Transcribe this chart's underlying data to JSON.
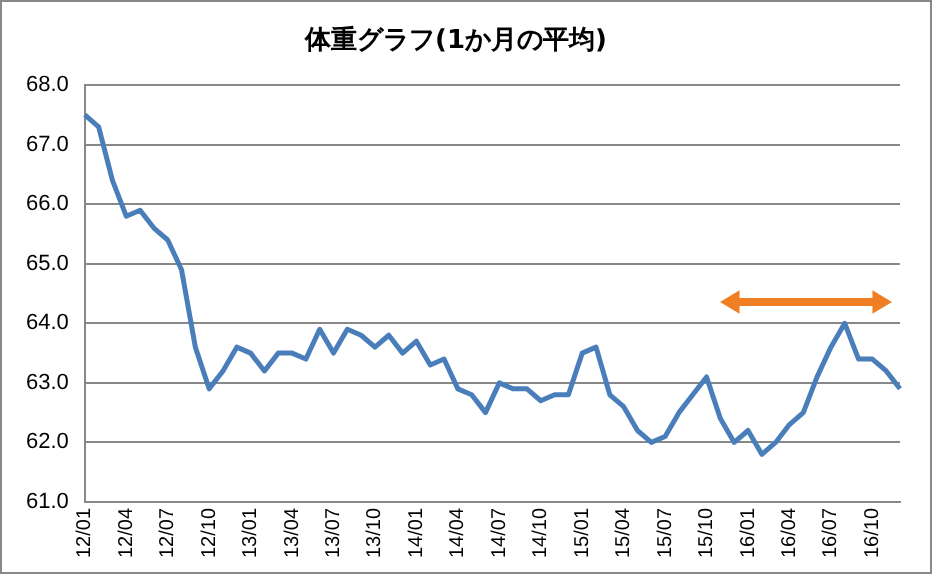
{
  "chart_data": {
    "type": "line",
    "title": "体重グラフ(1か月の平均)",
    "categories": [
      "12/01",
      null,
      null,
      "12/04",
      null,
      null,
      "12/07",
      null,
      null,
      "12/10",
      null,
      null,
      "13/01",
      null,
      null,
      "13/04",
      null,
      null,
      "13/07",
      null,
      null,
      "13/10",
      null,
      null,
      "14/01",
      null,
      null,
      "14/04",
      null,
      null,
      "14/07",
      null,
      null,
      "14/10",
      null,
      null,
      "15/01",
      null,
      null,
      "15/04",
      null,
      null,
      "15/07",
      null,
      null,
      "15/10",
      null,
      null,
      "16/01",
      null,
      null,
      "16/04",
      null,
      null,
      "16/07",
      null,
      null,
      "16/10",
      null,
      null
    ],
    "series": [
      {
        "color": "#4a7ebb",
        "values": [
          67.5,
          67.3,
          66.4,
          65.8,
          65.9,
          65.6,
          65.4,
          64.9,
          63.6,
          62.9,
          63.2,
          63.6,
          63.5,
          63.2,
          63.5,
          63.5,
          63.4,
          63.9,
          63.5,
          63.9,
          63.8,
          63.6,
          63.8,
          63.5,
          63.7,
          63.3,
          63.4,
          62.9,
          62.8,
          62.5,
          63.0,
          62.9,
          62.9,
          62.7,
          62.8,
          62.8,
          63.5,
          63.6,
          62.8,
          62.6,
          62.2,
          62.0,
          62.1,
          62.5,
          62.8,
          63.1,
          62.4,
          62.0,
          62.2,
          61.8,
          62.0,
          62.3,
          62.5,
          63.1,
          63.6,
          64.0,
          63.4,
          63.4,
          63.2,
          62.9
        ]
      }
    ],
    "ylim": [
      61,
      68
    ],
    "yticks": [
      {
        "value": 61,
        "label": "61.0"
      },
      {
        "value": 62,
        "label": "62.0"
      },
      {
        "value": 63,
        "label": "63.0"
      },
      {
        "value": 64,
        "label": "64.0"
      },
      {
        "value": 65,
        "label": "65.0"
      },
      {
        "value": 66,
        "label": "66.0"
      },
      {
        "value": 67,
        "label": "67.0"
      },
      {
        "value": 68,
        "label": "68.0"
      }
    ],
    "grid": "y",
    "legend": false,
    "marker": "none",
    "line_style": "solid"
  }
}
